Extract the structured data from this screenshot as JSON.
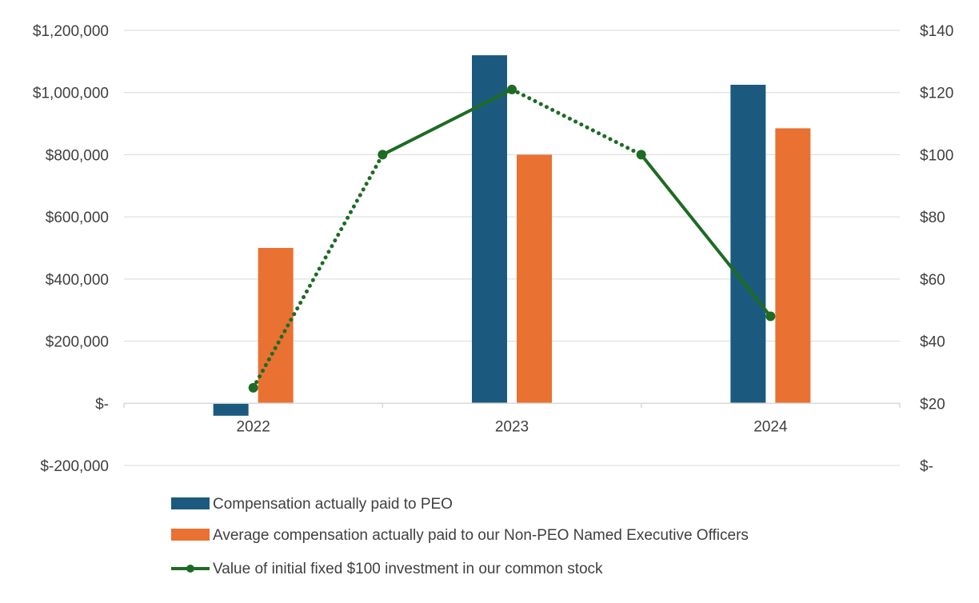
{
  "chart_data": {
    "type": "bar",
    "title": "",
    "categories": [
      "2022",
      "2023",
      "2024"
    ],
    "series": [
      {
        "name": "Compensation actually paid to  PEO",
        "kind": "bar",
        "axis": "left",
        "color": "#1b5a7e",
        "values": [
          -40000,
          1120000,
          1025000
        ]
      },
      {
        "name": "Average compensation actually paid to our Non-PEO Named Executive Officers",
        "kind": "bar",
        "axis": "left",
        "color": "#e97132",
        "values": [
          500000,
          800000,
          885000
        ]
      }
    ],
    "line_series": {
      "name": "Value of initial fixed $100 investment in our common stock",
      "kind": "line",
      "axis": "right",
      "color": "#1e6b24",
      "x": [
        0,
        0.5,
        1,
        1.5,
        2
      ],
      "values": [
        25,
        100,
        121,
        100,
        48
      ],
      "segment_styles": [
        "dotted",
        "solid",
        "dotted",
        "solid"
      ]
    },
    "left_axis": {
      "ylim": [
        -200000,
        1200000
      ],
      "ticks": [
        -200000,
        0,
        200000,
        400000,
        600000,
        800000,
        1000000,
        1200000
      ],
      "tick_labels": [
        "$-200,000",
        "$-",
        "$200,000",
        "$400,000",
        "$600,000",
        "$800,000",
        "$1,000,000",
        "$1,200,000"
      ]
    },
    "right_axis": {
      "ylim": [
        0,
        140
      ],
      "ticks": [
        0,
        20,
        40,
        60,
        80,
        100,
        120,
        140
      ],
      "tick_labels": [
        "$-",
        "$20",
        "$40",
        "$60",
        "$80",
        "$100",
        "$120",
        "$140"
      ]
    },
    "grid": true,
    "legend_position": "bottom-left",
    "colors": {
      "grid": "#d9d9d9",
      "axis_line": "#d9d9d9",
      "text": "#404040"
    }
  }
}
